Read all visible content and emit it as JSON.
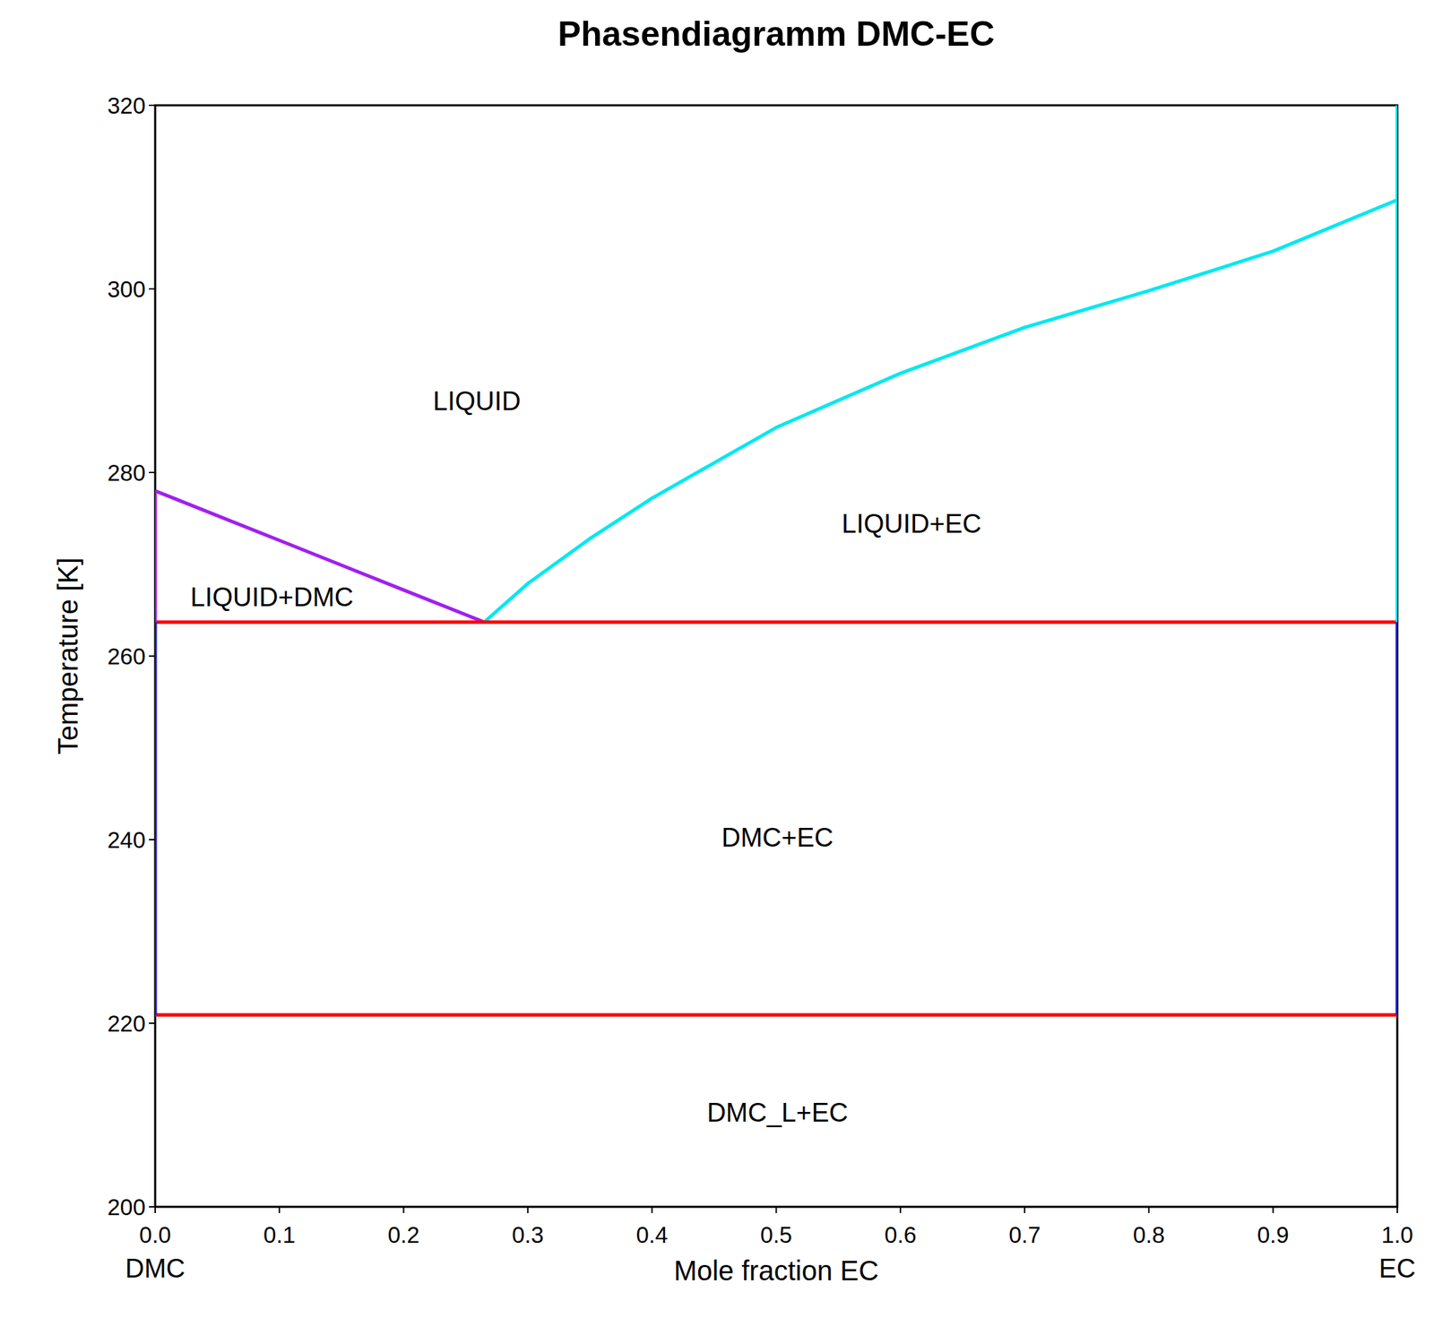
{
  "chart_data": {
    "type": "line",
    "title": "Phasendiagramm DMC-EC",
    "x_label": "Mole fraction EC",
    "y_label": "Temperature [K]",
    "xlim": [
      0,
      1
    ],
    "ylim": [
      200,
      320
    ],
    "xticks": [
      {
        "value": 0,
        "label": "0.0"
      },
      0.1,
      0.2,
      0.3,
      0.4,
      0.5,
      0.6,
      0.7,
      0.8,
      0.9,
      {
        "value": 1,
        "label": "1.0"
      }
    ],
    "yticks": [
      200,
      220,
      240,
      260,
      280,
      300,
      320
    ],
    "grid": false,
    "series": [
      {
        "color": "#a020f0",
        "x": [
          0,
          0.1,
          0.2,
          0.265
        ],
        "values": [
          278,
          272.6,
          267.2,
          263.7
        ]
      },
      {
        "color": "#00e8f0",
        "x": [
          0.265,
          0.3,
          0.35,
          0.4,
          0.5,
          0.6,
          0.7,
          0.8,
          0.9,
          1.0
        ],
        "values": [
          263.7,
          267.9,
          272.8,
          277.2,
          284.9,
          290.8,
          295.8,
          299.8,
          304.1,
          309.7
        ]
      },
      {
        "color": "#ff0000",
        "x": [
          0,
          1
        ],
        "values": [
          263.7,
          263.7
        ]
      },
      {
        "color": "#ff0000",
        "x": [
          0,
          1
        ],
        "values": [
          220.9,
          220.9
        ]
      },
      {
        "color": "#00e8f0",
        "x": [
          1,
          1
        ],
        "values": [
          263.7,
          320
        ]
      },
      {
        "color": "#2020c0",
        "x": [
          1,
          1
        ],
        "values": [
          220.9,
          263.7
        ]
      },
      {
        "color": "#2020c0",
        "x": [
          0,
          0
        ],
        "values": [
          220.9,
          263.7
        ]
      },
      {
        "color": "#a020f0",
        "x": [
          0,
          0
        ],
        "values": [
          263.7,
          278
        ]
      }
    ],
    "annotations": [
      {
        "text": "LIQUID",
        "x": 0.259,
        "y": 287.8
      },
      {
        "text": "LIQUID+EC",
        "x": 0.609,
        "y": 274.4
      },
      {
        "text": "LIQUID+DMC",
        "x": 0.094,
        "y": 266.4
      },
      {
        "text": "DMC+EC",
        "x": 0.501,
        "y": 240.2
      },
      {
        "text": "DMC_L+EC",
        "x": 0.501,
        "y": 210.3
      }
    ],
    "component_labels": [
      {
        "text": "DMC",
        "x": 0
      },
      {
        "text": "EC",
        "x": 1
      }
    ]
  }
}
